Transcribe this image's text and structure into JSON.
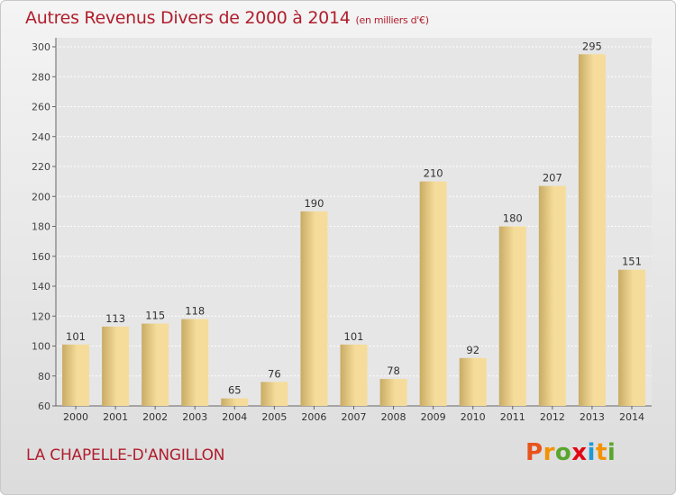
{
  "title": {
    "main": "Autres Revenus Divers de 2000 à 2014",
    "unit": "(en milliers d'€)"
  },
  "footer": {
    "commune": "LA CHAPELLE-D'ANGILLON",
    "logo_text": "Proxiti"
  },
  "colors": {
    "title": "#b01e2d",
    "bar_light": "#f5dc9a",
    "bar_dark": "#c9ab64",
    "logo": [
      "#e8531d",
      "#f39200",
      "#5aa62d",
      "#e30613",
      "#1d9ad6",
      "#f39200",
      "#5aa62d"
    ]
  },
  "chart_data": {
    "type": "bar",
    "categories": [
      "2000",
      "2001",
      "2002",
      "2003",
      "2004",
      "2005",
      "2006",
      "2007",
      "2008",
      "2009",
      "2010",
      "2011",
      "2012",
      "2013",
      "2014"
    ],
    "values": [
      101,
      113,
      115,
      118,
      65,
      76,
      190,
      101,
      78,
      210,
      92,
      180,
      207,
      295,
      151
    ],
    "ylim": [
      60,
      300
    ],
    "yticks": [
      60,
      80,
      100,
      120,
      140,
      160,
      180,
      200,
      220,
      240,
      260,
      280,
      300
    ],
    "grid": true,
    "data_labels": true
  }
}
